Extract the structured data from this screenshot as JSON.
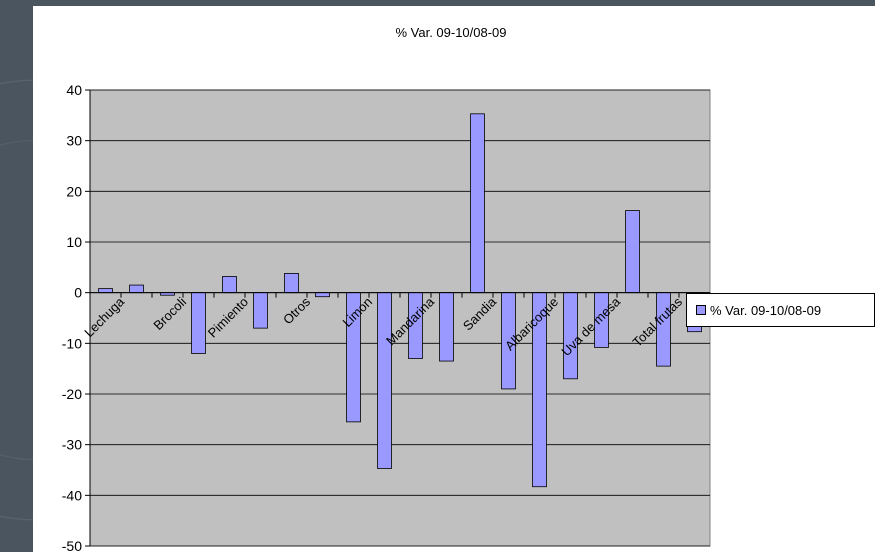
{
  "chart_data": {
    "type": "bar",
    "title": "% Var. 09-10/08-09",
    "xlabel": "",
    "ylabel": "",
    "ylim": [
      -50,
      40
    ],
    "yticks": [
      40,
      30,
      20,
      10,
      0,
      -10,
      -20,
      -30,
      -40,
      -50
    ],
    "grid": true,
    "legend_position": "right",
    "bar_color": "#9999ff",
    "plot_bg": "#c0c0c0",
    "categories": [
      "Lechuga",
      "",
      "Brocoli",
      "",
      "Pimiento",
      "",
      "Otros",
      "",
      "Limon",
      "",
      "Mandarina",
      "",
      "Sandia",
      "",
      "Albaricoque",
      "",
      "Uva de mesa",
      "",
      "Total frutas",
      ""
    ],
    "series": [
      {
        "name": "% Var. 09-10/08-09",
        "values": [
          0.8,
          1.5,
          -0.5,
          -12,
          3.2,
          -7,
          3.8,
          -0.8,
          -25.5,
          -34.7,
          -13,
          -13.5,
          35.3,
          -19,
          -38.3,
          -17,
          -10.8,
          16.2,
          -14.5,
          -7.7
        ]
      }
    ]
  }
}
